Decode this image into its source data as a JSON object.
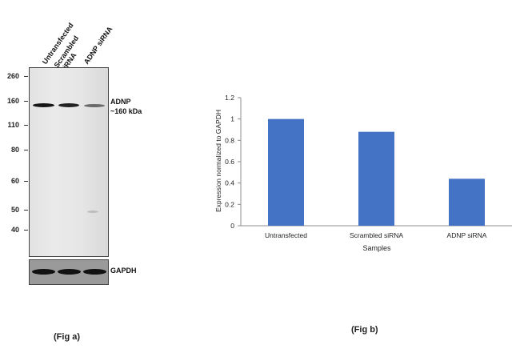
{
  "western_blot": {
    "lanes": [
      "Untransfected",
      "Scrambled siRNA",
      "ADNP siRNA"
    ],
    "mw_markers": [
      "260",
      "160",
      "110",
      "80",
      "60",
      "50",
      "40"
    ],
    "target_label": "ADNP",
    "target_size": "~160 kDa",
    "loading_control_label": "GAPDH"
  },
  "captions": {
    "fig_a": "(Fig a)",
    "fig_b": "(Fig b)"
  },
  "colors": {
    "bar": "#4472c4",
    "axis": "#8c8c8c"
  },
  "chart_data": {
    "type": "bar",
    "title": "",
    "categories": [
      "Untransfected",
      "Scrambled siRNA",
      "ADNP siRNA"
    ],
    "values": [
      1.0,
      0.88,
      0.44
    ],
    "xlabel": "Samples",
    "ylabel": "Expression  normalized to GAPDH",
    "ylim": [
      0,
      1.2
    ],
    "yticks": [
      0,
      0.2,
      0.4,
      0.6,
      0.8,
      1,
      1.2
    ],
    "ytick_labels": [
      "0",
      "0.2",
      "0.4",
      "0.6",
      "0.8",
      "1",
      "1.2"
    ],
    "grid": false,
    "legend": "none"
  }
}
